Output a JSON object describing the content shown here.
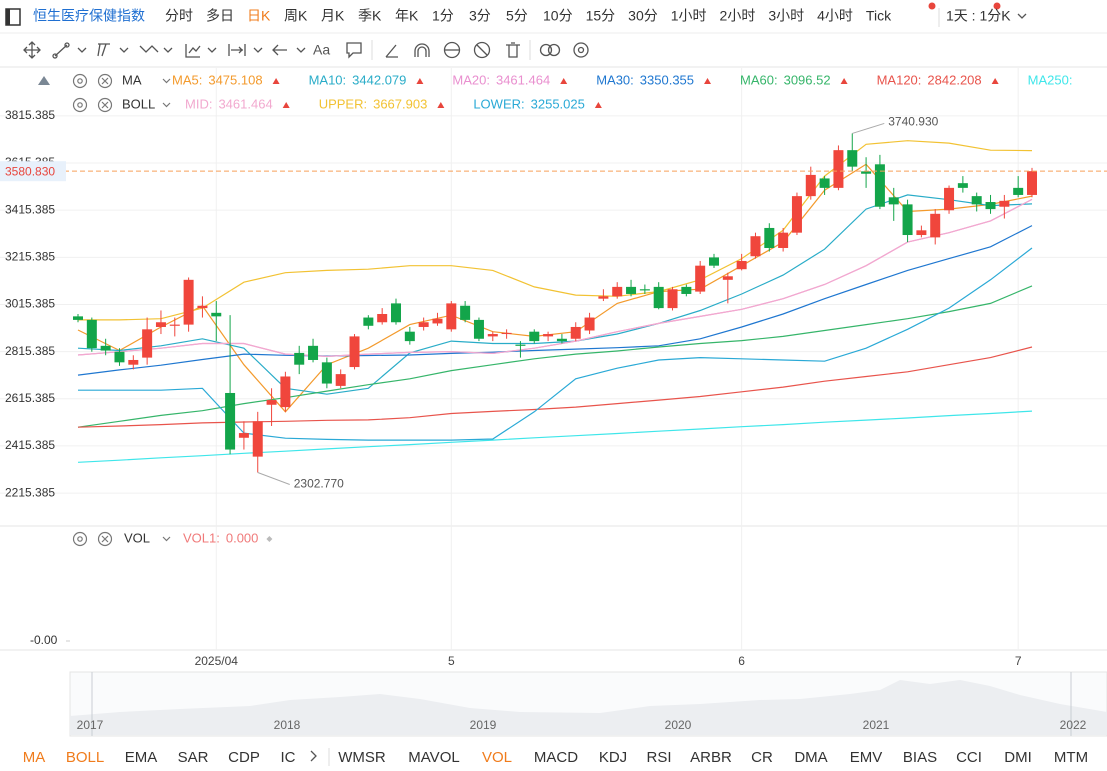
{
  "top_bar": {
    "title": "恒生医疗保健指数",
    "periods": [
      "分时",
      "多日",
      "日K",
      "周K",
      "月K",
      "季K",
      "年K",
      "1分",
      "3分",
      "5分",
      "10分",
      "15分",
      "30分",
      "1小时",
      "2小时",
      "3小时",
      "4小时",
      "Tick"
    ],
    "selected": "日K",
    "interval": "1天 : 1分K"
  },
  "toolbar": {
    "text_tool": "Aa"
  },
  "chart_data": {
    "type": "candlestick",
    "categories": [
      null,
      null,
      null,
      null,
      null,
      null,
      null,
      null,
      null,
      null,
      "2025/04",
      null,
      null,
      null,
      null,
      null,
      null,
      null,
      null,
      null,
      null,
      null,
      null,
      null,
      null,
      null,
      null,
      "5",
      null,
      null,
      null,
      null,
      null,
      null,
      null,
      null,
      null,
      null,
      null,
      null,
      null,
      null,
      null,
      null,
      null,
      null,
      null,
      null,
      "6",
      null,
      null,
      null,
      null,
      null,
      null,
      null,
      null,
      null,
      null,
      null,
      null,
      null,
      null,
      null,
      null,
      null,
      null,
      null,
      "7",
      null
    ],
    "open": [
      2965,
      2950,
      2840,
      2815,
      2760,
      2790,
      2920,
      2925,
      2930,
      3000,
      2980,
      2640,
      2450,
      2370,
      2590,
      2580,
      2810,
      2840,
      2770,
      2670,
      2750,
      2960,
      2940,
      3020,
      2900,
      2920,
      2935,
      2910,
      3010,
      2950,
      2880,
      2890,
      2845,
      2900,
      2880,
      2870,
      2870,
      2905,
      3040,
      3050,
      3090,
      3080,
      3090,
      3000,
      3090,
      3070,
      3215,
      3120,
      3165,
      3220,
      3340,
      3255,
      3320,
      3475,
      3550,
      3510,
      3670,
      3580,
      3610,
      3470,
      3440,
      3310,
      3300,
      3415,
      3530,
      3475,
      3450,
      3430,
      3510,
      3480
    ],
    "high": [
      2975,
      2960,
      2870,
      2830,
      2800,
      2960,
      2990,
      2960,
      3130,
      3050,
      3030,
      2970,
      2520,
      2560,
      2660,
      2730,
      2840,
      2870,
      2790,
      2740,
      2890,
      2970,
      3000,
      3040,
      2920,
      2960,
      2980,
      3030,
      3030,
      2960,
      2900,
      2910,
      2860,
      2910,
      2900,
      2890,
      2940,
      2980,
      3080,
      3110,
      3120,
      3100,
      3110,
      3090,
      3100,
      3200,
      3230,
      3150,
      3230,
      3320,
      3360,
      3340,
      3490,
      3600,
      3560,
      3690,
      3740.93,
      3640,
      3650,
      3510,
      3460,
      3350,
      3420,
      3520,
      3560,
      3490,
      3480,
      3480,
      3560,
      3595
    ],
    "low": [
      2940,
      2815,
      2800,
      2755,
      2740,
      2760,
      2890,
      2880,
      2900,
      2960,
      2860,
      2380,
      2400,
      2302.77,
      2500,
      2560,
      2720,
      2770,
      2660,
      2660,
      2740,
      2910,
      2930,
      2930,
      2845,
      2905,
      2925,
      2900,
      2940,
      2860,
      2860,
      2870,
      2790,
      2850,
      2860,
      2850,
      2860,
      2890,
      3030,
      3040,
      3050,
      3060,
      2995,
      2990,
      3050,
      3060,
      3170,
      3020,
      3160,
      3210,
      3240,
      3240,
      3310,
      3460,
      3480,
      3500,
      3580,
      3510,
      3420,
      3370,
      3280,
      3300,
      3270,
      3400,
      3490,
      3410,
      3400,
      3380,
      3470,
      3470
    ],
    "close": [
      2950,
      2830,
      2820,
      2770,
      2780,
      2910,
      2940,
      2930,
      3120,
      3010,
      2965,
      2400,
      2470,
      2520,
      2610,
      2710,
      2760,
      2780,
      2680,
      2720,
      2880,
      2925,
      2975,
      2940,
      2860,
      2940,
      2955,
      3020,
      2950,
      2870,
      2890,
      2895,
      2840,
      2860,
      2890,
      2860,
      2920,
      2960,
      3050,
      3090,
      3060,
      3075,
      3000,
      3080,
      3060,
      3180,
      3180,
      3135,
      3200,
      3305,
      3255,
      3320,
      3475,
      3565,
      3510,
      3670,
      3600,
      3570,
      3430,
      3440,
      3310,
      3330,
      3400,
      3510,
      3510,
      3440,
      3420,
      3455,
      3480,
      3580.83
    ],
    "up_color": "#f0463c",
    "down_color": "#13a54a",
    "ylim": [
      2080,
      4010
    ],
    "yticks": [
      3815.385,
      3615.385,
      3415.385,
      3215.385,
      3015.385,
      2815.385,
      2615.385,
      2415.385,
      2215.385
    ],
    "grid": true,
    "last_price": {
      "value": 3580.83,
      "label": "3580.830"
    },
    "high_label": "3740.930",
    "low_label": "2302.770",
    "overlays": [
      {
        "name": "MA",
        "x": [
          0,
          3,
          6,
          9,
          12,
          15,
          18,
          21,
          24,
          27,
          30,
          33,
          36,
          39,
          42,
          45,
          48,
          51,
          54,
          57,
          60,
          63,
          66,
          69
        ],
        "series": [
          {
            "name": "MA5:",
            "color": "#f39a2c",
            "current": 3475.108,
            "values": [
              2907,
              2820,
              2920,
              3010,
              2760,
              2560,
              2760,
              2830,
              2930,
              2970,
              2900,
              2880,
              2900,
              3020,
              3070,
              3080,
              3180,
              3280,
              3500,
              3610,
              3410,
              3420,
              3440,
              3475
            ]
          },
          {
            "name": "MA10:",
            "color": "#29acc8",
            "current": 3442.079,
            "values": [
              2830,
              2820,
              2840,
              2870,
              2830,
              2660,
              2635,
              2660,
              2810,
              2860,
              2850,
              2850,
              2860,
              2890,
              2935,
              2990,
              3060,
              3140,
              3250,
              3420,
              3480,
              3460,
              3435,
              3442
            ]
          },
          {
            "name": "MA20:",
            "color": "#e98fcf",
            "current": 3461.464,
            "values": [
              2801,
              2815,
              2830,
              2850,
              2850,
              2805,
              2795,
              2805,
              2812,
              2815,
              2808,
              2830,
              2860,
              2900,
              2935,
              2965,
              2995,
              3040,
              3100,
              3180,
              3280,
              3320,
              3370,
              3461
            ]
          },
          {
            "name": "MA30:",
            "color": "#1f77d0",
            "current": 3350.355,
            "values": [
              2716,
              2738,
              2758,
              2782,
              2805,
              2800,
              2797,
              2799,
              2801,
              2808,
              2813,
              2820,
              2826,
              2832,
              2840,
              2870,
              2920,
              2975,
              3040,
              3100,
              3160,
              3210,
              3260,
              3350
            ]
          },
          {
            "name": "MA60:",
            "color": "#36b56a",
            "current": 3096.52,
            "values": [
              2495,
              2520,
              2545,
              2565,
              2595,
              2620,
              2648,
              2675,
              2700,
              2735,
              2760,
              2785,
              2805,
              2818,
              2835,
              2850,
              2862,
              2880,
              2905,
              2930,
              2955,
              2985,
              3020,
              3094
            ]
          },
          {
            "name": "MA120:",
            "color": "#e8544c",
            "current": 2842.208,
            "values": [
              2495,
              2500,
              2506,
              2513,
              2517,
              2520,
              2524,
              2526,
              2535,
              2553,
              2562,
              2570,
              2580,
              2595,
              2610,
              2625,
              2645,
              2665,
              2690,
              2710,
              2730,
              2760,
              2790,
              2835
            ]
          },
          {
            "name": "MA250:",
            "color": "#3fe6ea",
            "values": [
              2346,
              2355,
              2365,
              2374,
              2384,
              2393,
              2403,
              2412,
              2421,
              2431,
              2440,
              2450,
              2459,
              2468,
              2478,
              2487,
              2497,
              2506,
              2516,
              2525,
              2534,
              2544,
              2553,
              2563
            ]
          }
        ]
      },
      {
        "name": "BOLL",
        "x": [
          0,
          3,
          6,
          9,
          12,
          15,
          18,
          21,
          24,
          27,
          30,
          33,
          36,
          39,
          42,
          45,
          48,
          51,
          54,
          57,
          60,
          63,
          66,
          69
        ],
        "series": [
          {
            "name": "MID:",
            "color": "#f2a9cf",
            "current": 3461.464,
            "values": [
              2801,
              2815,
              2830,
              2850,
              2850,
              2805,
              2795,
              2805,
              2812,
              2815,
              2808,
              2830,
              2860,
              2900,
              2935,
              2965,
              2995,
              3040,
              3100,
              3180,
              3280,
              3320,
              3370,
              3461
            ]
          },
          {
            "name": "UPPER:",
            "color": "#f2c233",
            "current": 3667.903,
            "values": [
              2950,
              2950,
              2955,
              3000,
              3110,
              3150,
              3160,
              3165,
              3180,
              3180,
              3160,
              3090,
              3055,
              3050,
              3070,
              3120,
              3210,
              3330,
              3560,
              3695,
              3710,
              3700,
              3670,
              3668
            ]
          },
          {
            "name": "LOWER:",
            "color": "#2aa9d6",
            "current": 3255.025,
            "values": [
              2652,
              2652,
              2652,
              2660,
              2470,
              2448,
              2443,
              2440,
              2440,
              2440,
              2445,
              2560,
              2700,
              2745,
              2780,
              2790,
              2785,
              2780,
              2775,
              2830,
              2910,
              3000,
              3120,
              3255
            ]
          }
        ]
      }
    ]
  },
  "volume": {
    "name": "VOL",
    "series_name": "VOL1:",
    "current": "0.000",
    "color": "#f07a7a",
    "yticks": [
      {
        "value": 0,
        "label": "-0.00"
      }
    ]
  },
  "navigator": {
    "years": [
      "2017",
      "2018",
      "2019",
      "2020",
      "2021",
      "2022"
    ]
  },
  "indicator_tabs": {
    "items": [
      "MA",
      "BOLL",
      "EMA",
      "SAR",
      "CDP",
      "IC",
      "WMSR",
      "MAVOL",
      "VOL",
      "MACD",
      "KDJ",
      "RSI",
      "ARBR",
      "CR",
      "DMA",
      "EMV",
      "BIAS",
      "CCI",
      "DMI",
      "MTM"
    ],
    "active": [
      "MA",
      "BOLL",
      "VOL"
    ]
  }
}
